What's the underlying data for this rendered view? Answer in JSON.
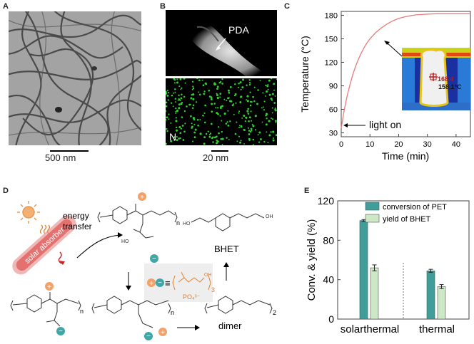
{
  "panels": {
    "A": {
      "label": "A",
      "scalebar": "500 nm"
    },
    "B": {
      "label": "B",
      "pda_label": "PDA",
      "element_label": "N",
      "scalebar": "20 nm"
    },
    "C": {
      "label": "C",
      "ylabel": "Temperature (°C)",
      "xlabel": "Time (min)",
      "annotation": "light on",
      "thermal_reading_1": "168.4",
      "thermal_reading_2": "158.1°C"
    },
    "D": {
      "label": "D",
      "solar_absorber": "solar absorber",
      "energy_transfer_1": "energy",
      "energy_transfer_2": "transfer",
      "bhet": "BHET",
      "dimer": "dimer",
      "phosphate": "PO₄³⁻",
      "equiv": "≡",
      "sub_n": "n",
      "sub_2": "2",
      "sub_3": "3"
    },
    "E": {
      "label": "E",
      "ylabel": "Conv. & yield (%)"
    }
  },
  "chart_data": [
    {
      "type": "line",
      "panel": "C",
      "xlabel": "Time (min)",
      "ylabel": "Temperature (°C)",
      "xlim": [
        0,
        45
      ],
      "ylim": [
        25,
        185
      ],
      "xticks": [
        0,
        10,
        20,
        30,
        40
      ],
      "yticks": [
        30,
        60,
        90,
        120,
        150,
        180
      ],
      "series": [
        {
          "color": "#e97a7a",
          "x": [
            0,
            1,
            2,
            3,
            4,
            5,
            6,
            7,
            8,
            9,
            10,
            12,
            14,
            16,
            18,
            20,
            22,
            24,
            26,
            28,
            30,
            33,
            36,
            40,
            45
          ],
          "y": [
            36,
            58,
            76,
            91,
            104,
            115,
            124,
            132,
            139,
            145,
            150,
            158,
            164,
            169,
            173,
            176,
            178,
            179.5,
            180.5,
            181,
            181.5,
            182,
            182,
            182,
            182
          ]
        }
      ]
    },
    {
      "type": "bar",
      "panel": "E",
      "categories": [
        "solarthermal",
        "thermal"
      ],
      "ylabel": "Conv. & yield (%)",
      "ylim": [
        0,
        120
      ],
      "yticks": [
        0,
        40,
        80,
        120
      ],
      "series": [
        {
          "name": "conversion of PET",
          "color": "#3f9e9a",
          "values": [
            100,
            49
          ],
          "errors": [
            1,
            1.5
          ]
        },
        {
          "name": "yield of BHET",
          "color": "#cde8c4",
          "values": [
            52,
            33
          ],
          "errors": [
            3,
            2
          ]
        }
      ]
    }
  ]
}
